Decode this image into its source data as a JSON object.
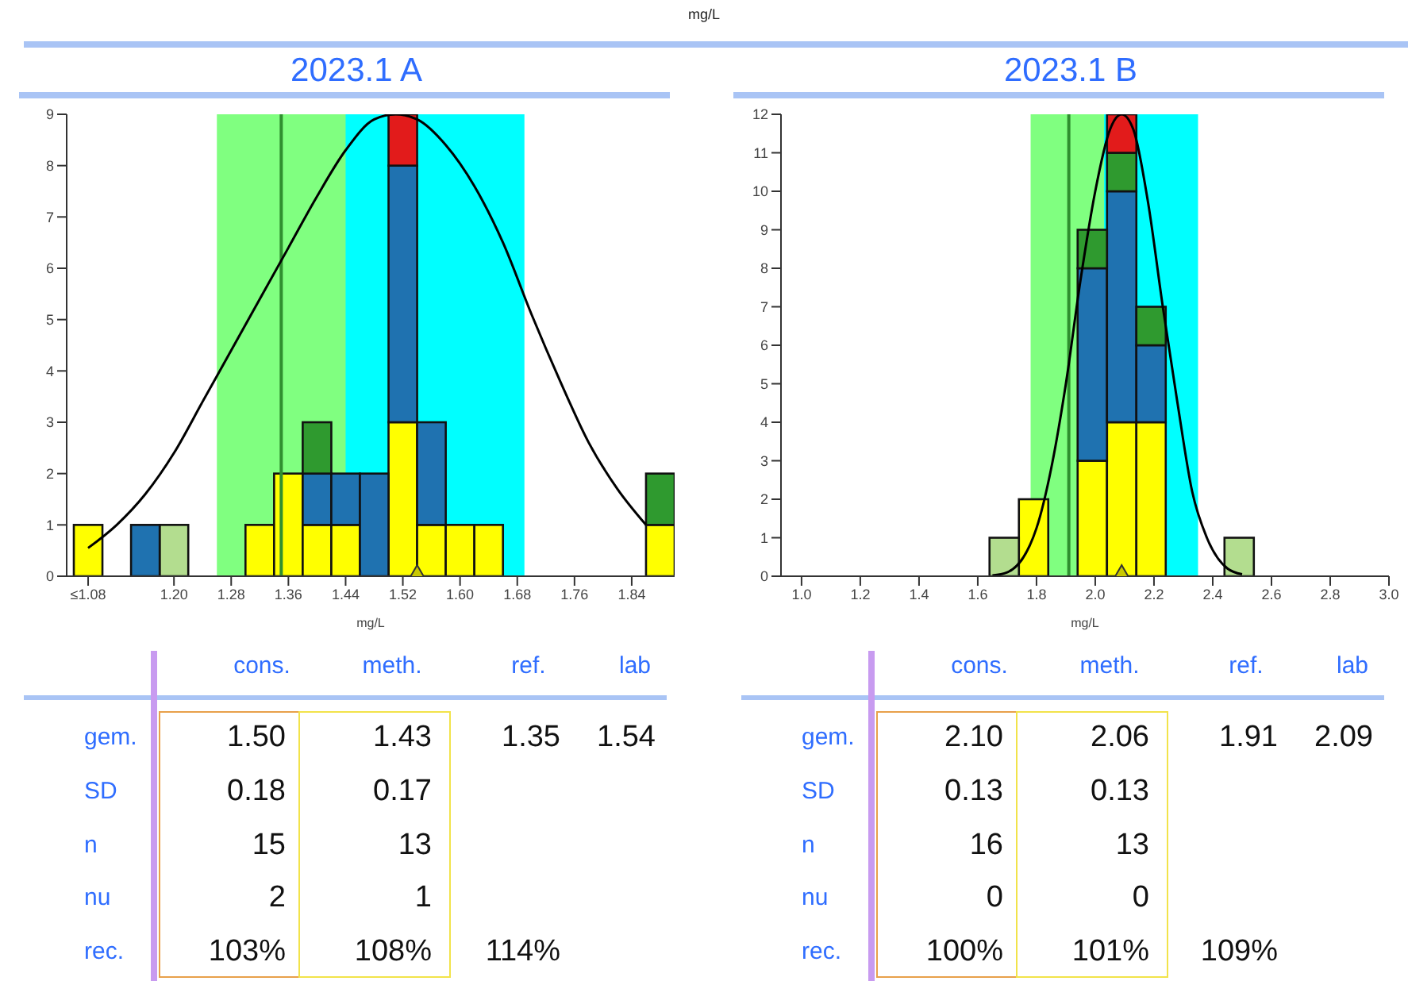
{
  "chart_data": [
    {
      "type": "bar",
      "title": "2023.1 A",
      "xlabel": "mg/L",
      "annotations": [
        "mg/L"
      ],
      "stacked": true,
      "x": [
        1.08,
        1.12,
        1.16,
        1.2,
        1.24,
        1.28,
        1.32,
        1.36,
        1.4,
        1.44,
        1.48,
        1.52,
        1.56,
        1.6,
        1.64,
        1.68,
        1.72,
        1.76,
        1.8,
        1.84,
        1.88
      ],
      "xlim": [
        1.05,
        1.9
      ],
      "xticks": [
        {
          "value": 1.08,
          "label": "≤1.08"
        },
        {
          "value": 1.2,
          "label": "1.20"
        },
        1.28,
        1.36,
        1.44,
        1.52,
        {
          "value": 1.6,
          "label": "1.60"
        },
        1.68,
        1.76,
        1.84
      ],
      "ylim": [
        0,
        9
      ],
      "yticks": [
        0,
        1,
        2,
        3,
        4,
        5,
        6,
        7,
        8,
        9
      ],
      "series": [
        {
          "color": "#ffff00",
          "values": [
            1,
            0,
            0,
            0,
            0,
            0,
            1,
            2,
            1,
            1,
            0,
            3,
            1,
            1,
            1,
            0,
            0,
            0,
            0,
            0,
            1
          ]
        },
        {
          "color": "#b3dd8f",
          "values": [
            0,
            0,
            0,
            1,
            0,
            0,
            0,
            0,
            0,
            0,
            0,
            0,
            0,
            0,
            0,
            0,
            0,
            0,
            0,
            0,
            0
          ]
        },
        {
          "color": "#1f72b0",
          "values": [
            0,
            0,
            1,
            0,
            0,
            0,
            0,
            0,
            1,
            1,
            2,
            5,
            2,
            0,
            0,
            0,
            0,
            0,
            0,
            0,
            0
          ]
        },
        {
          "color": "#2f9a2f",
          "values": [
            0,
            0,
            0,
            0,
            0,
            0,
            0,
            0,
            1,
            0,
            0,
            0,
            0,
            0,
            0,
            0,
            0,
            0,
            0,
            0,
            1
          ]
        },
        {
          "color": "#e21b1b",
          "values": [
            0,
            0,
            0,
            0,
            0,
            0,
            0,
            0,
            0,
            0,
            0,
            1,
            0,
            0,
            0,
            0,
            0,
            0,
            0,
            0,
            0
          ]
        },
        {
          "type": "line",
          "color": "#000000",
          "x": [
            1.08,
            1.12,
            1.16,
            1.2,
            1.24,
            1.28,
            1.32,
            1.36,
            1.4,
            1.44,
            1.48,
            1.51,
            1.54,
            1.58,
            1.62,
            1.66,
            1.7,
            1.74,
            1.78,
            1.82,
            1.86
          ],
          "values": [
            0.55,
            1.0,
            1.6,
            2.4,
            3.4,
            4.4,
            5.4,
            6.4,
            7.4,
            8.3,
            8.9,
            9.0,
            8.9,
            8.4,
            7.6,
            6.5,
            5.1,
            3.8,
            2.6,
            1.7,
            1.0
          ]
        },
        {
          "type": "scatter",
          "marker": "triangle",
          "color": "#c8c800",
          "x": [
            1.54
          ],
          "values": [
            0
          ]
        }
      ],
      "bands": [
        {
          "axis": "x",
          "from": 1.31,
          "to": 1.69,
          "color": "#00ffff"
        },
        {
          "axis": "x",
          "from": 1.26,
          "to": 1.44,
          "color": "#80ff80"
        }
      ],
      "ref_lines": [
        {
          "axis": "x",
          "value": 1.35,
          "color": "#2f8f2f"
        }
      ]
    },
    {
      "type": "bar",
      "title": "2023.1 B",
      "xlabel": "mg/L",
      "stacked": true,
      "x": [
        1.69,
        1.79,
        1.89,
        1.99,
        2.09,
        2.19,
        2.29,
        2.39,
        2.49
      ],
      "xlim": [
        0.93,
        3.0
      ],
      "xticks": [
        {
          "value": 1,
          "label": "1.0"
        },
        1.2,
        1.4,
        1.6,
        1.8,
        {
          "value": 2,
          "label": "2.0"
        },
        2.2,
        2.4,
        2.6,
        2.8,
        {
          "value": 3,
          "label": "3.0"
        }
      ],
      "ylim": [
        0,
        12
      ],
      "yticks": [
        0,
        1,
        2,
        3,
        4,
        5,
        6,
        7,
        8,
        9,
        10,
        11,
        12
      ],
      "series": [
        {
          "color": "#ffff00",
          "values": [
            0,
            2,
            0,
            3,
            4,
            4,
            0,
            0,
            0
          ]
        },
        {
          "color": "#b3dd8f",
          "values": [
            1,
            0,
            0,
            0,
            0,
            0,
            0,
            0,
            1
          ]
        },
        {
          "color": "#1f72b0",
          "values": [
            0,
            0,
            0,
            5,
            6,
            2,
            0,
            0,
            0
          ]
        },
        {
          "color": "#2f9a2f",
          "values": [
            0,
            0,
            0,
            1,
            1,
            1,
            0,
            0,
            0
          ]
        },
        {
          "color": "#e21b1b",
          "values": [
            0,
            0,
            0,
            0,
            1,
            0,
            0,
            0,
            0
          ]
        },
        {
          "type": "line",
          "color": "#000000",
          "x": [
            1.65,
            1.7,
            1.8,
            1.85,
            1.9,
            1.95,
            2.0,
            2.05,
            2.09,
            2.13,
            2.18,
            2.23,
            2.28,
            2.33,
            2.38,
            2.45,
            2.5
          ],
          "values": [
            0.02,
            0.1,
            1.25,
            2.8,
            5.0,
            7.7,
            10.0,
            11.6,
            12,
            11.6,
            9.7,
            7.0,
            4.5,
            2.2,
            1.0,
            0.2,
            0.05
          ]
        },
        {
          "type": "scatter",
          "marker": "triangle",
          "color": "#c8c800",
          "x": [
            2.09
          ],
          "values": [
            0
          ]
        }
      ],
      "bands": [
        {
          "axis": "x",
          "from": 1.83,
          "to": 2.35,
          "color": "#00ffff"
        },
        {
          "axis": "x",
          "from": 1.78,
          "to": 2.03,
          "color": "#80ff80"
        }
      ],
      "ref_lines": [
        {
          "axis": "x",
          "value": 1.91,
          "color": "#2f8f2f"
        }
      ]
    },
    {
      "type": "other",
      "categories": [
        "cons.",
        "meth.",
        "ref.",
        "lab"
      ],
      "y_categories": [
        "gem.",
        "SD",
        "n",
        "nu",
        "rec."
      ],
      "cell_labels": [
        [
          "1.50",
          "1.43",
          "1.35",
          "1.54"
        ],
        [
          "0.18",
          "0.17",
          null,
          null
        ],
        [
          "15",
          "13",
          null,
          null
        ],
        [
          "2",
          "1",
          null,
          null
        ],
        [
          "103%",
          "108%",
          "114%",
          null
        ]
      ]
    },
    {
      "type": "other",
      "categories": [
        "cons.",
        "meth.",
        "ref.",
        "lab"
      ],
      "y_categories": [
        "gem.",
        "SD",
        "n",
        "nu",
        "rec."
      ],
      "cell_labels": [
        [
          "2.10",
          "2.06",
          "1.91",
          "2.09"
        ],
        [
          "0.13",
          "0.13",
          null,
          null
        ],
        [
          "16",
          "13",
          null,
          null
        ],
        [
          "0",
          "0",
          null,
          null
        ],
        [
          "100%",
          "101%",
          "109%",
          null
        ]
      ]
    }
  ]
}
